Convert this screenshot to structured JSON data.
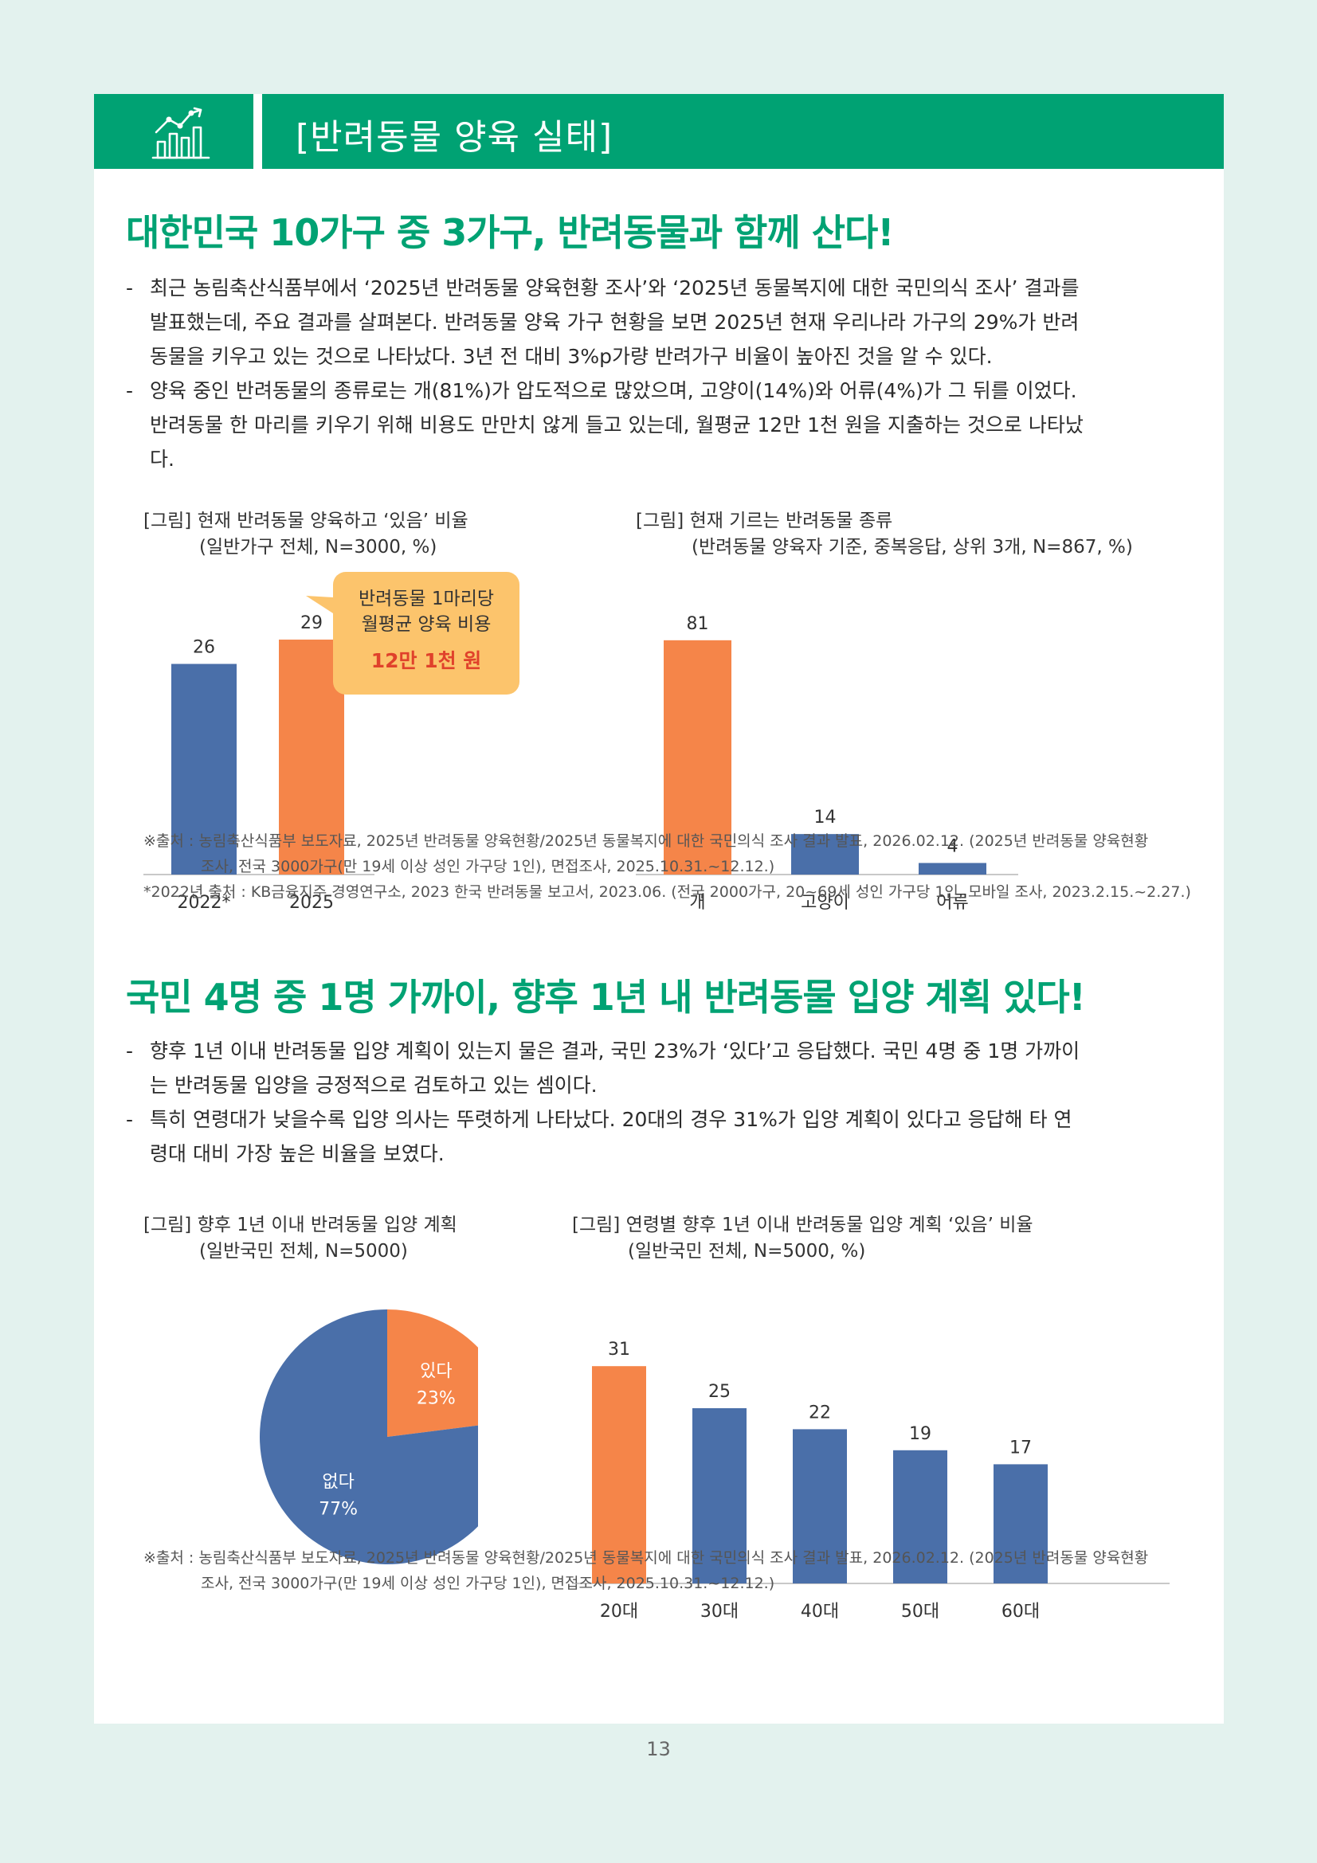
{
  "header": {
    "title": "[반려동물 양육 실태]",
    "icon": "growth-chart-icon"
  },
  "section1": {
    "title": "대한민국 10가구 중 3가구, 반려동물과 함께 산다!",
    "bullets": [
      [
        "최근 농림축산식품부에서 ‘2025년 반려동물 양육현황 조사’와 ‘2025년 동물복지에 대한 국민의식 조사’ 결과를",
        "발표했는데, 주요 결과를 살펴본다. 반려동물 양육 가구 현황을 보면 2025년 현재 우리나라 가구의 29%가 반려",
        "동물을 키우고 있는 것으로 나타났다. 3년 전 대비 3%p가량 반려가구 비율이 높아진 것을 알 수 있다."
      ],
      [
        "양육 중인 반려동물의 종류로는 개(81%)가 압도적으로 많았으며, 고양이(14%)와 어류(4%)가 그 뒤를 이었다.",
        "반려동물 한 마리를 키우기 위해 비용도 만만치 않게 들고 있는데, 월평균 12만 1천 원을 지출하는 것으로 나타났",
        "다."
      ]
    ],
    "fig1": {
      "caption": "[그림] 현재 반려동물 양육하고 ‘있음’ 비율",
      "sub": "(일반가구 전체, N=3000, %)"
    },
    "fig2": {
      "caption": "[그림] 현재 기르는 반려동물 종류",
      "sub": "(반려동물 양육자 기준, 중복응답, 상위 3개, N=867, %)"
    },
    "callout": {
      "line1": "반려동물 1마리당",
      "line2": "월평균 양육 비용",
      "value": "12만 1천 원"
    },
    "source": [
      "※출처 : 농림축산식품부 보도자료, 2025년 반려동물 양육현황/2025년 동물복지에 대한 국민의식 조사 결과 발표, 2026.02.12. (2025년 반려동물 양육현황",
      "조사, 전국 3000가구(만 19세 이상 성인 가구당 1인), 면접조사, 2025.10.31.~12.12.)",
      "*2022년 출처 : KB금융지주 경영연구소, 2023 한국 반려동물 보고서, 2023.06. (전국 2000가구, 20~69세 성인 가구당 1인, 모바일 조사, 2023.2.15.~2.27.)"
    ]
  },
  "section2": {
    "title": "국민 4명 중 1명 가까이, 향후 1년 내 반려동물 입양 계획 있다!",
    "bullets": [
      [
        "향후 1년 이내 반려동물 입양 계획이 있는지 물은 결과, 국민 23%가 ‘있다’고 응답했다. 국민 4명 중 1명 가까이",
        "는 반려동물 입양을 긍정적으로 검토하고 있는 셈이다."
      ],
      [
        "특히 연령대가 낮을수록 입양 의사는 뚜렷하게 나타났다. 20대의 경우 31%가 입양 계획이 있다고 응답해 타 연",
        "령대 대비 가장 높은 비율을 보였다."
      ]
    ],
    "fig3": {
      "caption": "[그림] 향후 1년 이내 반려동물 입양 계획",
      "sub": "(일반국민 전체, N=5000)"
    },
    "fig4": {
      "caption": "[그림] 연령별 향후 1년 이내 반려동물 입양 계획 ‘있음’ 비율",
      "sub": "(일반국민 전체, N=5000, %)"
    },
    "source": [
      "※출처 : 농림축산식품부 보도자료, 2025년 반려동물 양육현황/2025년 동물복지에 대한 국민의식 조사 결과 발표, 2026.02.12. (2025년 반려동물 양육현황",
      "조사, 전국 3000가구(만 19세 이상 성인 가구당 1인), 면접조사, 2025.10.31.~12.12.)"
    ]
  },
  "chart_data": [
    {
      "type": "bar",
      "categories": [
        "2022*",
        "2025"
      ],
      "values": [
        26,
        29
      ],
      "colors": [
        "#4a6fa9",
        "#f58549"
      ],
      "ylim": [
        0,
        35
      ]
    },
    {
      "type": "bar",
      "categories": [
        "개",
        "고양이",
        "어류"
      ],
      "values": [
        81,
        14,
        4
      ],
      "colors": [
        "#f58549",
        "#4a6fa9",
        "#4a6fa9"
      ],
      "ylim": [
        0,
        95
      ]
    },
    {
      "type": "pie",
      "categories": [
        "있다",
        "없다"
      ],
      "values": [
        23,
        77
      ],
      "labels": [
        "23%",
        "77%"
      ],
      "colors": [
        "#f58549",
        "#4a6fa9"
      ]
    },
    {
      "type": "bar",
      "categories": [
        "20대",
        "30대",
        "40대",
        "50대",
        "60대"
      ],
      "values": [
        31,
        25,
        22,
        19,
        17
      ],
      "colors": [
        "#f58549",
        "#4a6fa9",
        "#4a6fa9",
        "#4a6fa9",
        "#4a6fa9"
      ],
      "ylim": [
        0,
        40
      ]
    }
  ],
  "page_number": "13"
}
